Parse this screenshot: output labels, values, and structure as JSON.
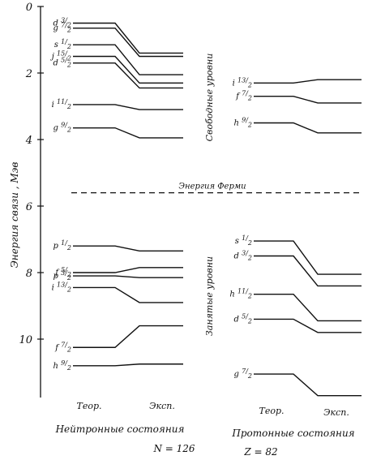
{
  "figure": {
    "y_axis_label": "Энергия связи , Мэв",
    "y_ticks": [
      "0",
      "2",
      "4",
      "6",
      "8",
      "10"
    ],
    "fermi_label": "Энергия Ферми",
    "fermi_energy": 5.6,
    "side_labels": {
      "free": "Свободные уровни",
      "occupied": "Занятые уровни"
    },
    "neutron": {
      "col_theory": "Теор.",
      "col_exp": "Эксп.",
      "caption": "Нейтронные состояния",
      "count": "N = 126",
      "levels": [
        {
          "label": "d 3/2",
          "theory": 0.5,
          "exp": 1.4
        },
        {
          "label": "g 7/2",
          "theory": 0.65,
          "exp": 1.5
        },
        {
          "label": "s 1/2",
          "theory": 1.15,
          "exp": 2.05
        },
        {
          "label": "j 15/2",
          "theory": 1.5,
          "exp": 2.3
        },
        {
          "label": "d 5/2",
          "theory": 1.7,
          "exp": 2.45
        },
        {
          "label": "i 11/2",
          "theory": 2.95,
          "exp": 3.1
        },
        {
          "label": "g 9/2",
          "theory": 3.65,
          "exp": 3.95
        },
        {
          "label": "p 1/2",
          "theory": 7.2,
          "exp": 7.35
        },
        {
          "label": "f 5/2",
          "theory": 8.0,
          "exp": 7.85
        },
        {
          "label": "p 3/2",
          "theory": 8.1,
          "exp": 8.15
        },
        {
          "label": "i 13/2",
          "theory": 8.45,
          "exp": 8.9
        },
        {
          "label": "f 7/2",
          "theory": 10.25,
          "exp": 9.6
        },
        {
          "label": "h 9/2",
          "theory": 10.8,
          "exp": 10.75
        }
      ]
    },
    "proton": {
      "col_theory": "Теор.",
      "col_exp": "Эксп.",
      "caption": "Протонные состояния",
      "count": "Z = 82",
      "levels": [
        {
          "label": "i 13/2",
          "theory": 2.3,
          "exp": 2.2
        },
        {
          "label": "f 7/2",
          "theory": 2.7,
          "exp": 2.9
        },
        {
          "label": "h 9/2",
          "theory": 3.5,
          "exp": 3.8
        },
        {
          "label": "s 1/2",
          "theory": 7.05,
          "exp": 8.05
        },
        {
          "label": "d 3/2",
          "theory": 7.5,
          "exp": 8.4
        },
        {
          "label": "h 11/2",
          "theory": 8.65,
          "exp": 9.45
        },
        {
          "label": "d 5/2",
          "theory": 9.4,
          "exp": 9.8
        },
        {
          "label": "g 7/2",
          "theory": 11.05,
          "exp": 11.7
        }
      ]
    }
  }
}
